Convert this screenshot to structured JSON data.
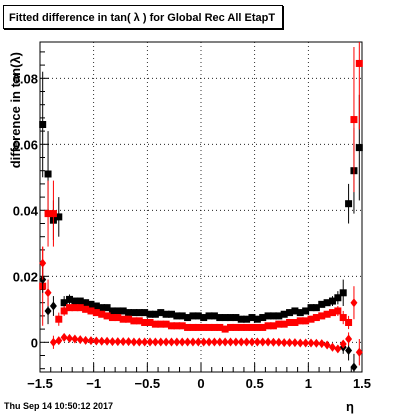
{
  "title": "Fitted difference in tan( λ ) for Global Rec All EtapT",
  "footer": "Thu Sep 14 10:50:12 2017",
  "colors": {
    "series_a": "#000000",
    "series_b": "#ff0000",
    "grid": "#000000"
  },
  "chart_data": {
    "type": "scatter",
    "title": "Fitted difference in tan( λ ) for Global Rec All EtapT",
    "xlabel": "η",
    "ylabel": "difference in tan(λ)",
    "xlim": [
      -1.5,
      1.5
    ],
    "ylim": [
      -0.009,
      0.091
    ],
    "xticks": [
      -1.5,
      -1,
      -0.5,
      0,
      0.5,
      1,
      1.5
    ],
    "xtick_labels": [
      "−1.5",
      "−1",
      "−0.5",
      "0",
      "0.5",
      "1",
      "1.5"
    ],
    "yticks": [
      0,
      0.02,
      0.04,
      0.06,
      0.08
    ],
    "ytick_labels": [
      "0",
      "0.02",
      "0.04",
      "0.06",
      "0.08"
    ],
    "grid": true,
    "legend": "none",
    "series": [
      {
        "marker": "square",
        "color": "#000000",
        "x": [
          -1.475,
          -1.425,
          -1.375,
          -1.325,
          -1.275,
          -1.225,
          -1.175,
          -1.125,
          -1.075,
          -1.025,
          -0.975,
          -0.925,
          -0.875,
          -0.825,
          -0.775,
          -0.725,
          -0.675,
          -0.625,
          -0.575,
          -0.525,
          -0.475,
          -0.425,
          -0.375,
          -0.325,
          -0.275,
          -0.225,
          -0.175,
          -0.125,
          -0.075,
          -0.025,
          0.025,
          0.075,
          0.125,
          0.175,
          0.225,
          0.275,
          0.325,
          0.375,
          0.425,
          0.475,
          0.525,
          0.575,
          0.625,
          0.675,
          0.725,
          0.775,
          0.825,
          0.875,
          0.925,
          0.975,
          1.025,
          1.075,
          1.125,
          1.175,
          1.225,
          1.275,
          1.325,
          1.375,
          1.425,
          1.475
        ],
        "y": [
          0.066,
          0.051,
          0.037,
          0.038,
          0.012,
          0.013,
          0.0125,
          0.0125,
          0.012,
          0.0115,
          0.011,
          0.0105,
          0.0105,
          0.0095,
          0.0095,
          0.0095,
          0.009,
          0.009,
          0.009,
          0.009,
          0.0085,
          0.0085,
          0.009,
          0.0085,
          0.0085,
          0.008,
          0.008,
          0.0075,
          0.008,
          0.008,
          0.0075,
          0.008,
          0.008,
          0.0075,
          0.0075,
          0.0075,
          0.0075,
          0.007,
          0.007,
          0.0075,
          0.007,
          0.0075,
          0.008,
          0.008,
          0.008,
          0.0085,
          0.009,
          0.0095,
          0.009,
          0.0095,
          0.0105,
          0.0105,
          0.0115,
          0.012,
          0.0125,
          0.0135,
          0.015,
          0.042,
          0.052,
          0.059
        ],
        "yerr": [
          0.016,
          0.013,
          0.006,
          0.006,
          0.002,
          0.0015,
          0.001,
          0.001,
          0.001,
          0.001,
          0.001,
          0.001,
          0.001,
          0.001,
          0.001,
          0.001,
          0.001,
          0.001,
          0.001,
          0.001,
          0.001,
          0.001,
          0.001,
          0.001,
          0.001,
          0.001,
          0.001,
          0.001,
          0.001,
          0.001,
          0.001,
          0.001,
          0.001,
          0.001,
          0.001,
          0.001,
          0.001,
          0.001,
          0.001,
          0.001,
          0.001,
          0.001,
          0.001,
          0.001,
          0.001,
          0.001,
          0.001,
          0.001,
          0.001,
          0.001,
          0.001,
          0.001,
          0.001,
          0.001,
          0.0015,
          0.002,
          0.004,
          0.006,
          0.013,
          0.016
        ]
      },
      {
        "marker": "square",
        "color": "#ff0000",
        "x": [
          -1.475,
          -1.425,
          -1.375,
          -1.325,
          -1.275,
          -1.225,
          -1.175,
          -1.125,
          -1.075,
          -1.025,
          -0.975,
          -0.925,
          -0.875,
          -0.825,
          -0.775,
          -0.725,
          -0.675,
          -0.625,
          -0.575,
          -0.525,
          -0.475,
          -0.425,
          -0.375,
          -0.325,
          -0.275,
          -0.225,
          -0.175,
          -0.125,
          -0.075,
          -0.025,
          0.025,
          0.075,
          0.125,
          0.175,
          0.225,
          0.275,
          0.325,
          0.375,
          0.425,
          0.475,
          0.525,
          0.575,
          0.625,
          0.675,
          0.725,
          0.775,
          0.825,
          0.875,
          0.925,
          0.975,
          1.025,
          1.075,
          1.125,
          1.175,
          1.225,
          1.275,
          1.325,
          1.375,
          1.425,
          1.475
        ],
        "y": [
          0.017,
          0.039,
          0.039,
          0.007,
          0.0095,
          0.0105,
          0.0105,
          0.0105,
          0.01,
          0.0095,
          0.009,
          0.0085,
          0.008,
          0.0075,
          0.0075,
          0.007,
          0.007,
          0.0065,
          0.0065,
          0.006,
          0.006,
          0.0055,
          0.0055,
          0.0055,
          0.005,
          0.005,
          0.005,
          0.0045,
          0.0045,
          0.0045,
          0.0045,
          0.0045,
          0.0045,
          0.0045,
          0.004,
          0.0045,
          0.0045,
          0.0045,
          0.0045,
          0.0045,
          0.0045,
          0.0045,
          0.005,
          0.005,
          0.0055,
          0.0055,
          0.006,
          0.006,
          0.0065,
          0.0065,
          0.007,
          0.0075,
          0.008,
          0.0085,
          0.009,
          0.0095,
          0.0075,
          0.006,
          0.0675,
          0.0845
        ],
        "yerr": [
          0.012,
          0.01,
          0.01,
          0.002,
          0.0015,
          0.001,
          0.001,
          0.001,
          0.001,
          0.001,
          0.001,
          0.001,
          0.001,
          0.001,
          0.001,
          0.001,
          0.001,
          0.001,
          0.001,
          0.001,
          0.001,
          0.001,
          0.001,
          0.001,
          0.001,
          0.001,
          0.001,
          0.001,
          0.001,
          0.001,
          0.001,
          0.001,
          0.001,
          0.001,
          0.001,
          0.001,
          0.001,
          0.001,
          0.001,
          0.001,
          0.001,
          0.001,
          0.001,
          0.001,
          0.001,
          0.001,
          0.001,
          0.001,
          0.001,
          0.001,
          0.001,
          0.001,
          0.001,
          0.001,
          0.001,
          0.0015,
          0.002,
          0.002,
          0.022,
          0.02
        ]
      },
      {
        "marker": "diamond",
        "color": "#000000",
        "x": [
          -1.475,
          -1.425,
          -1.375,
          1.325,
          1.375,
          1.425
        ],
        "y": [
          0.019,
          0.0095,
          0.011,
          -0.0015,
          -0.0025,
          -0.0075
        ],
        "yerr": [
          0.004,
          0.004,
          0.003,
          0.002,
          0.003,
          0.004
        ]
      },
      {
        "marker": "diamond",
        "color": "#ff0000",
        "x": [
          -1.475,
          -1.425,
          -1.375,
          -1.325,
          -1.275,
          -1.225,
          -1.175,
          -1.125,
          -1.075,
          -1.025,
          -0.975,
          -0.925,
          -0.875,
          -0.825,
          -0.775,
          -0.725,
          -0.675,
          -0.625,
          -0.575,
          -0.525,
          -0.475,
          -0.425,
          -0.375,
          -0.325,
          -0.275,
          -0.225,
          -0.175,
          -0.125,
          -0.075,
          -0.025,
          0.025,
          0.075,
          0.125,
          0.175,
          0.225,
          0.275,
          0.325,
          0.375,
          0.425,
          0.475,
          0.525,
          0.575,
          0.625,
          0.675,
          0.725,
          0.775,
          0.825,
          0.875,
          0.925,
          0.975,
          1.025,
          1.075,
          1.125,
          1.175,
          1.225,
          1.275,
          1.325,
          1.375,
          1.425,
          1.475
        ],
        "y": [
          0.024,
          0.015,
          0.0,
          0.0005,
          0.0015,
          0.0012,
          0.001,
          0.0008,
          0.0006,
          0.0005,
          0.0004,
          0.0003,
          0.0003,
          0.0002,
          0.0002,
          0.0002,
          0.0002,
          0.0001,
          0.0001,
          0.0001,
          0.0001,
          0.0001,
          0.0001,
          0.0001,
          0.0001,
          0.0001,
          0.0001,
          0.0001,
          0.0001,
          0.0001,
          0.0001,
          0.0001,
          0.0001,
          0.0001,
          0.0001,
          0.0001,
          0.0001,
          0.0001,
          0.0001,
          0.0001,
          0.0001,
          0.0001,
          0.0001,
          0.0,
          0.0,
          -0.0001,
          -0.0001,
          -0.0001,
          -0.0002,
          -0.0002,
          -0.0002,
          -0.0003,
          -0.0004,
          -0.0008,
          -0.0015,
          -0.002,
          -0.0005,
          0.001,
          0.012,
          -0.003
        ],
        "yerr": [
          0.005,
          0.004,
          0.002,
          0.0005,
          0.0005,
          0.0005,
          0.0003,
          0.0003,
          0.0003,
          0.0003,
          0.0003,
          0.0003,
          0.0003,
          0.0003,
          0.0003,
          0.0003,
          0.0003,
          0.0003,
          0.0003,
          0.0003,
          0.0003,
          0.0003,
          0.0003,
          0.0003,
          0.0003,
          0.0003,
          0.0003,
          0.0003,
          0.0003,
          0.0003,
          0.0003,
          0.0003,
          0.0003,
          0.0003,
          0.0003,
          0.0003,
          0.0003,
          0.0003,
          0.0003,
          0.0003,
          0.0003,
          0.0003,
          0.0003,
          0.0003,
          0.0003,
          0.0003,
          0.0003,
          0.0003,
          0.0003,
          0.0003,
          0.0003,
          0.0003,
          0.0003,
          0.0003,
          0.0005,
          0.0005,
          0.001,
          0.002,
          0.005,
          0.004
        ]
      }
    ]
  }
}
